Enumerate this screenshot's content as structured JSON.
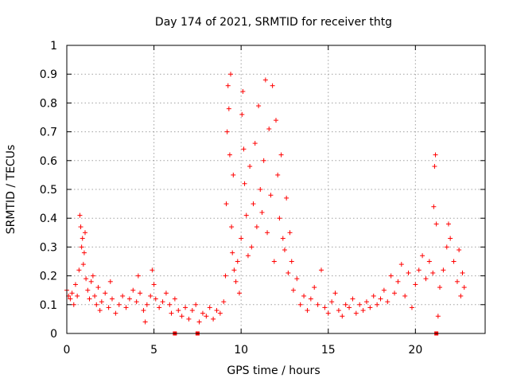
{
  "chart_data": {
    "type": "scatter",
    "title": "Day 174 of 2021, SRMTID for receiver thtg",
    "xlabel": "GPS time / hours",
    "ylabel": "SRMTID / TECUs",
    "xlim": [
      0,
      24
    ],
    "ylim": [
      0,
      1
    ],
    "xticks": [
      0,
      5,
      10,
      15,
      20
    ],
    "xtick_labels": [
      "0",
      "5",
      "10",
      "15",
      "20"
    ],
    "yticks": [
      0,
      0.1,
      0.2,
      0.3,
      0.4,
      0.5,
      0.6,
      0.7,
      0.8,
      0.9,
      1
    ],
    "ytick_labels": [
      "0",
      "0.1",
      "0.2",
      "0.3",
      "0.4",
      "0.5",
      "0.6",
      "0.7",
      "0.8",
      "0.9",
      "1"
    ],
    "grid": true,
    "marker": "+",
    "color": "#ff0000",
    "series": [
      {
        "name": "SRMTID",
        "points": [
          [
            0.0,
            0.15
          ],
          [
            0.1,
            0.13
          ],
          [
            0.2,
            0.12
          ],
          [
            0.3,
            0.14
          ],
          [
            0.4,
            0.1
          ],
          [
            0.5,
            0.17
          ],
          [
            0.6,
            0.13
          ],
          [
            0.7,
            0.22
          ],
          [
            0.75,
            0.41
          ],
          [
            0.8,
            0.37
          ],
          [
            0.85,
            0.3
          ],
          [
            0.9,
            0.33
          ],
          [
            0.95,
            0.24
          ],
          [
            1.0,
            0.28
          ],
          [
            1.05,
            0.35
          ],
          [
            1.1,
            0.19
          ],
          [
            1.2,
            0.15
          ],
          [
            1.3,
            0.12
          ],
          [
            1.4,
            0.18
          ],
          [
            1.5,
            0.2
          ],
          [
            1.6,
            0.13
          ],
          [
            1.7,
            0.1
          ],
          [
            1.8,
            0.16
          ],
          [
            1.9,
            0.08
          ],
          [
            2.0,
            0.11
          ],
          [
            2.2,
            0.14
          ],
          [
            2.4,
            0.09
          ],
          [
            2.5,
            0.18
          ],
          [
            2.6,
            0.12
          ],
          [
            2.8,
            0.07
          ],
          [
            3.0,
            0.1
          ],
          [
            3.2,
            0.13
          ],
          [
            3.4,
            0.09
          ],
          [
            3.6,
            0.12
          ],
          [
            3.8,
            0.15
          ],
          [
            4.0,
            0.11
          ],
          [
            4.1,
            0.2
          ],
          [
            4.2,
            0.14
          ],
          [
            4.4,
            0.08
          ],
          [
            4.5,
            0.04
          ],
          [
            4.6,
            0.1
          ],
          [
            4.8,
            0.13
          ],
          [
            4.9,
            0.22
          ],
          [
            5.0,
            0.17
          ],
          [
            5.1,
            0.12
          ],
          [
            5.3,
            0.09
          ],
          [
            5.5,
            0.11
          ],
          [
            5.7,
            0.14
          ],
          [
            5.9,
            0.1
          ],
          [
            6.0,
            0.07
          ],
          [
            6.2,
            0.12
          ],
          [
            6.4,
            0.08
          ],
          [
            6.6,
            0.06
          ],
          [
            6.8,
            0.09
          ],
          [
            7.0,
            0.05
          ],
          [
            7.2,
            0.08
          ],
          [
            7.4,
            0.1
          ],
          [
            7.6,
            0.04
          ],
          [
            7.8,
            0.07
          ],
          [
            8.0,
            0.06
          ],
          [
            8.2,
            0.09
          ],
          [
            8.4,
            0.05
          ],
          [
            8.6,
            0.08
          ],
          [
            8.8,
            0.07
          ],
          [
            9.0,
            0.11
          ],
          [
            9.1,
            0.2
          ],
          [
            9.15,
            0.45
          ],
          [
            9.2,
            0.7
          ],
          [
            9.25,
            0.86
          ],
          [
            9.3,
            0.78
          ],
          [
            9.35,
            0.62
          ],
          [
            9.4,
            0.9
          ],
          [
            9.45,
            0.37
          ],
          [
            9.5,
            0.28
          ],
          [
            9.55,
            0.55
          ],
          [
            9.6,
            0.22
          ],
          [
            9.7,
            0.18
          ],
          [
            9.8,
            0.25
          ],
          [
            9.9,
            0.14
          ],
          [
            10.0,
            0.33
          ],
          [
            10.05,
            0.76
          ],
          [
            10.1,
            0.84
          ],
          [
            10.15,
            0.64
          ],
          [
            10.2,
            0.52
          ],
          [
            10.3,
            0.41
          ],
          [
            10.4,
            0.27
          ],
          [
            10.5,
            0.58
          ],
          [
            10.6,
            0.3
          ],
          [
            10.7,
            0.45
          ],
          [
            10.8,
            0.66
          ],
          [
            10.9,
            0.37
          ],
          [
            11.0,
            0.79
          ],
          [
            11.1,
            0.5
          ],
          [
            11.2,
            0.42
          ],
          [
            11.3,
            0.6
          ],
          [
            11.4,
            0.88
          ],
          [
            11.5,
            0.35
          ],
          [
            11.6,
            0.71
          ],
          [
            11.7,
            0.48
          ],
          [
            11.8,
            0.86
          ],
          [
            11.9,
            0.25
          ],
          [
            12.0,
            0.74
          ],
          [
            12.1,
            0.55
          ],
          [
            12.2,
            0.4
          ],
          [
            12.3,
            0.62
          ],
          [
            12.4,
            0.33
          ],
          [
            12.5,
            0.29
          ],
          [
            12.6,
            0.47
          ],
          [
            12.7,
            0.21
          ],
          [
            12.8,
            0.35
          ],
          [
            12.9,
            0.25
          ],
          [
            13.0,
            0.15
          ],
          [
            13.2,
            0.19
          ],
          [
            13.4,
            0.1
          ],
          [
            13.6,
            0.13
          ],
          [
            13.8,
            0.08
          ],
          [
            14.0,
            0.12
          ],
          [
            14.2,
            0.16
          ],
          [
            14.4,
            0.1
          ],
          [
            14.6,
            0.22
          ],
          [
            14.8,
            0.09
          ],
          [
            15.0,
            0.07
          ],
          [
            15.2,
            0.11
          ],
          [
            15.4,
            0.14
          ],
          [
            15.6,
            0.08
          ],
          [
            15.8,
            0.06
          ],
          [
            16.0,
            0.1
          ],
          [
            16.2,
            0.09
          ],
          [
            16.4,
            0.12
          ],
          [
            16.6,
            0.07
          ],
          [
            16.8,
            0.1
          ],
          [
            17.0,
            0.08
          ],
          [
            17.2,
            0.11
          ],
          [
            17.4,
            0.09
          ],
          [
            17.6,
            0.13
          ],
          [
            17.8,
            0.1
          ],
          [
            18.0,
            0.12
          ],
          [
            18.2,
            0.15
          ],
          [
            18.4,
            0.11
          ],
          [
            18.6,
            0.2
          ],
          [
            18.8,
            0.14
          ],
          [
            19.0,
            0.18
          ],
          [
            19.2,
            0.24
          ],
          [
            19.4,
            0.13
          ],
          [
            19.6,
            0.21
          ],
          [
            19.8,
            0.09
          ],
          [
            20.0,
            0.17
          ],
          [
            20.2,
            0.22
          ],
          [
            20.4,
            0.27
          ],
          [
            20.6,
            0.19
          ],
          [
            20.8,
            0.25
          ],
          [
            21.0,
            0.21
          ],
          [
            21.05,
            0.44
          ],
          [
            21.1,
            0.58
          ],
          [
            21.15,
            0.62
          ],
          [
            21.2,
            0.38
          ],
          [
            21.3,
            0.06
          ],
          [
            21.4,
            0.16
          ],
          [
            21.6,
            0.22
          ],
          [
            21.8,
            0.3
          ],
          [
            21.9,
            0.38
          ],
          [
            22.0,
            0.33
          ],
          [
            22.2,
            0.25
          ],
          [
            22.4,
            0.18
          ],
          [
            22.5,
            0.29
          ],
          [
            22.6,
            0.13
          ],
          [
            22.7,
            0.21
          ],
          [
            22.8,
            0.16
          ]
        ]
      }
    ],
    "markers_on_axis": [
      6.2,
      7.5,
      21.2
    ]
  }
}
